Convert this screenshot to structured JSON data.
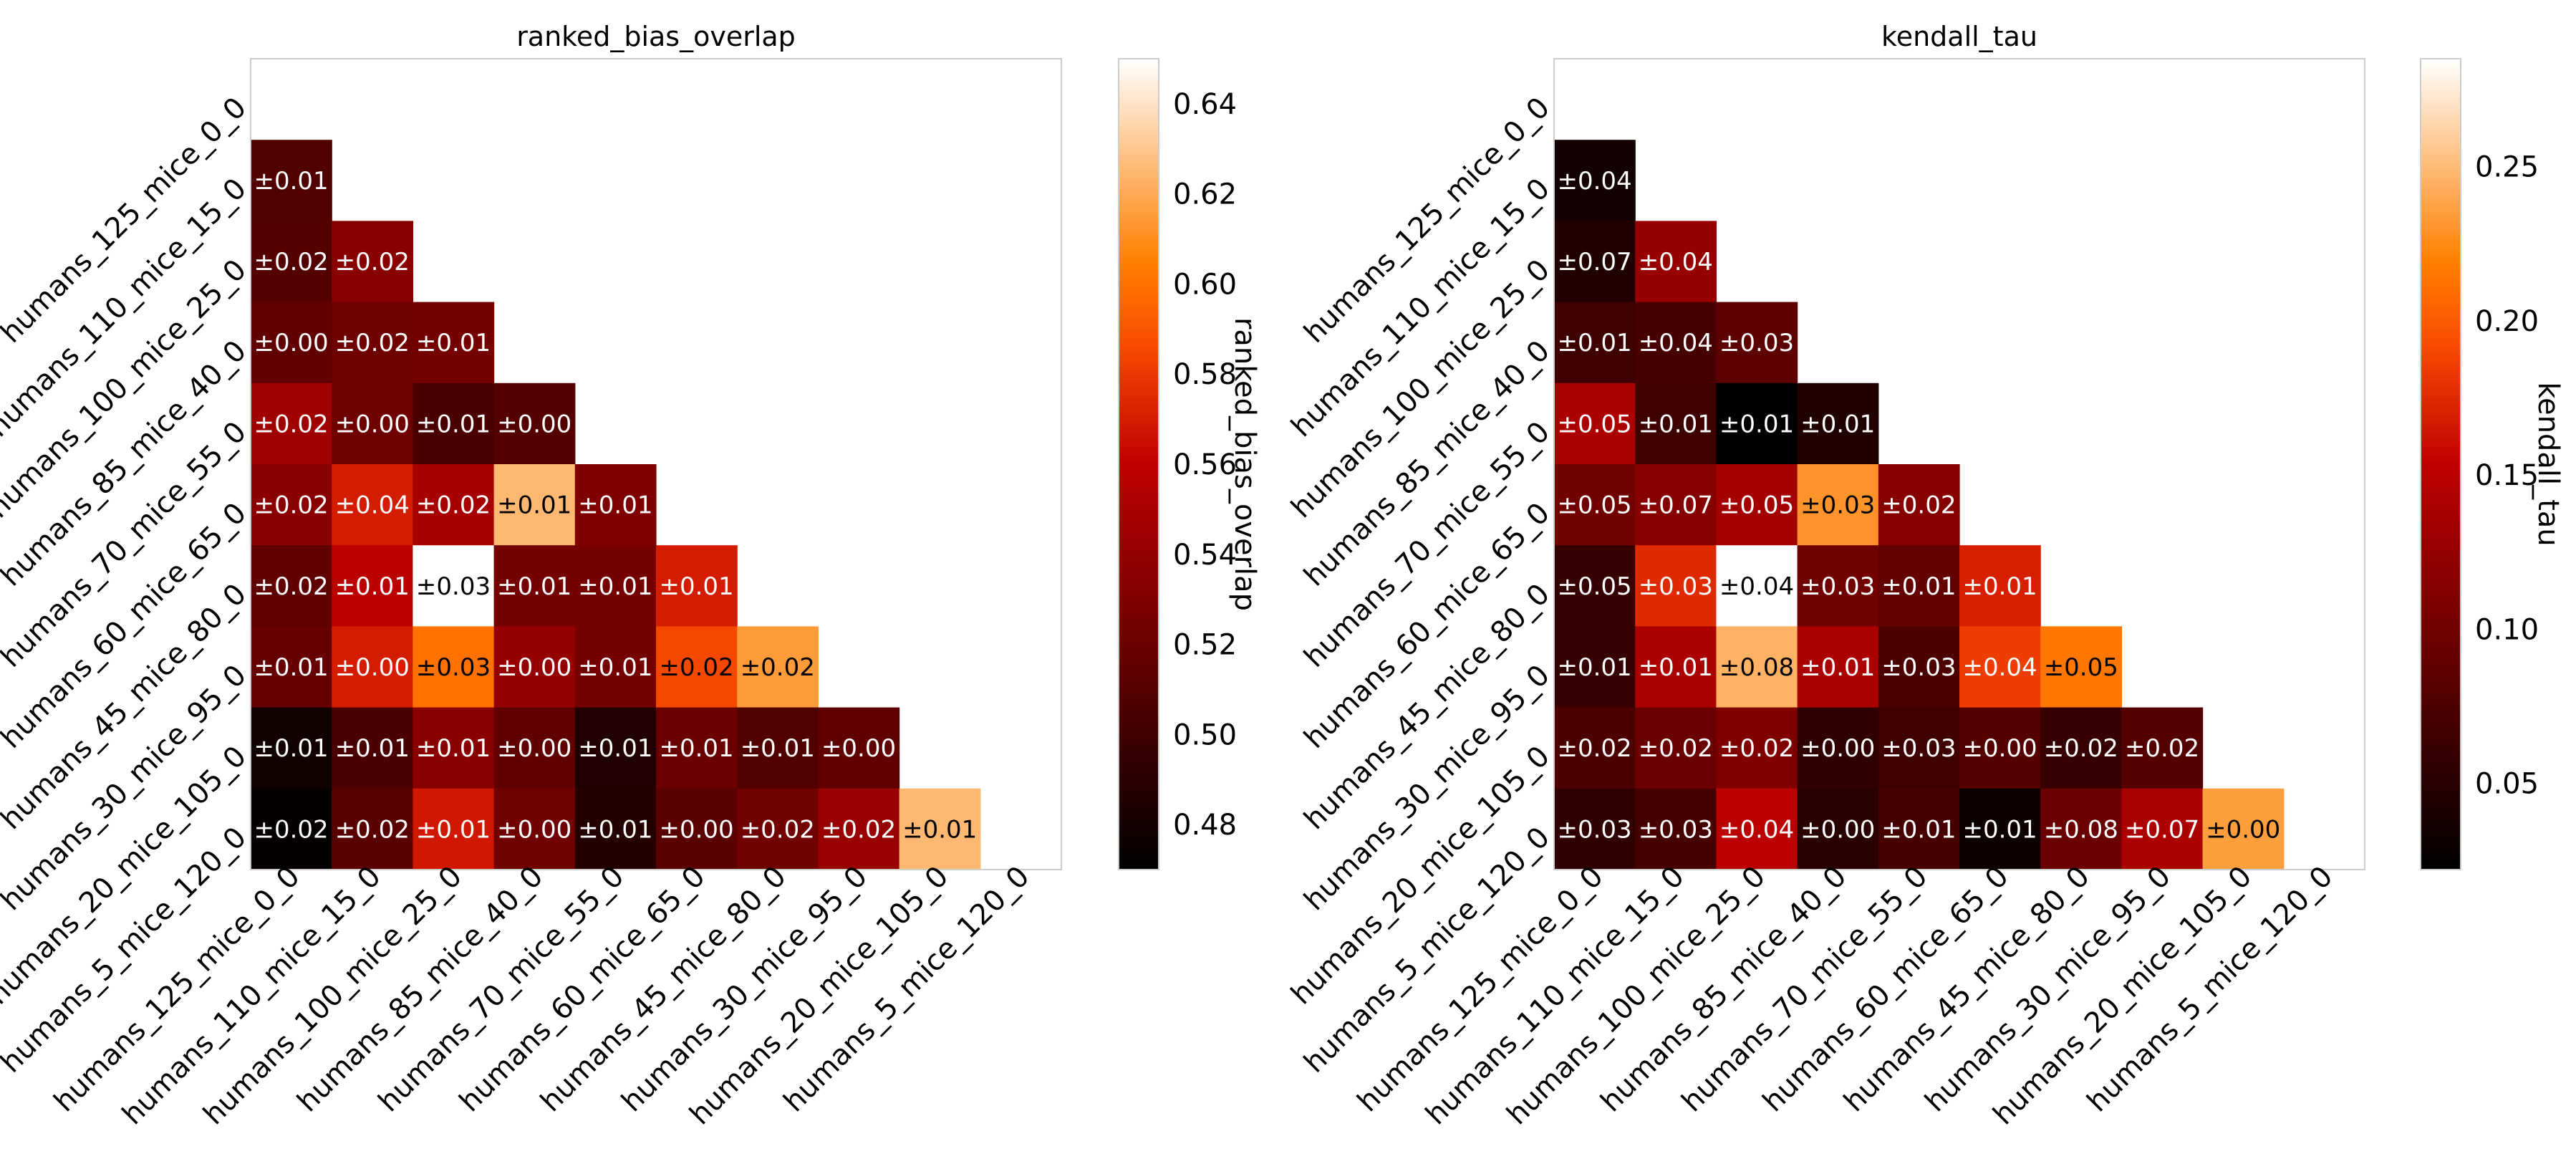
{
  "chart_data": [
    {
      "type": "heatmap",
      "title": "ranked_bias_overlap",
      "colorbar_label": "ranked_bias_overlap",
      "colormap": "gist_heat",
      "vmin": 0.47,
      "vmax": 0.65,
      "colorbar_ticks": [
        0.48,
        0.5,
        0.52,
        0.54,
        0.56,
        0.58,
        0.6,
        0.62,
        0.64
      ],
      "colorbar_tick_labels": [
        "0.48",
        "0.50",
        "0.52",
        "0.54",
        "0.56",
        "0.58",
        "0.60",
        "0.62",
        "0.64"
      ],
      "x_tick_labels": [
        "humans_125_mice_0_0",
        "humans_110_mice_15_0",
        "humans_100_mice_25_0",
        "humans_85_mice_40_0",
        "humans_70_mice_55_0",
        "humans_60_mice_65_0",
        "humans_45_mice_80_0",
        "humans_30_mice_95_0",
        "humans_20_mice_105_0",
        "humans_5_mice_120_0"
      ],
      "y_tick_labels": [
        "humans_125_mice_0_0",
        "humans_110_mice_15_0",
        "humans_100_mice_25_0",
        "humans_85_mice_40_0",
        "humans_70_mice_55_0",
        "humans_60_mice_65_0",
        "humans_45_mice_80_0",
        "humans_30_mice_95_0",
        "humans_20_mice_105_0",
        "humans_5_mice_120_0"
      ],
      "mask": "upper triangle including diagonal",
      "values": [
        [
          null,
          null,
          null,
          null,
          null,
          null,
          null,
          null,
          null,
          null
        ],
        [
          0.508,
          null,
          null,
          null,
          null,
          null,
          null,
          null,
          null,
          null
        ],
        [
          0.51,
          0.534,
          null,
          null,
          null,
          null,
          null,
          null,
          null,
          null
        ],
        [
          0.515,
          0.522,
          0.525,
          null,
          null,
          null,
          null,
          null,
          null,
          null
        ],
        [
          0.545,
          0.522,
          0.505,
          0.51,
          null,
          null,
          null,
          null,
          null,
          null
        ],
        [
          0.535,
          0.57,
          0.548,
          0.625,
          0.53,
          null,
          null,
          null,
          null,
          null
        ],
        [
          0.515,
          0.558,
          0.65,
          0.525,
          0.525,
          0.57,
          null,
          null,
          null,
          null
        ],
        [
          0.518,
          0.57,
          0.6,
          0.54,
          0.525,
          0.585,
          0.615,
          null,
          null,
          null
        ],
        [
          0.478,
          0.505,
          0.535,
          0.515,
          0.485,
          0.52,
          0.508,
          0.515,
          null,
          null
        ],
        [
          0.472,
          0.512,
          0.568,
          0.523,
          0.487,
          0.513,
          0.523,
          0.542,
          0.625,
          null
        ]
      ],
      "annotations": [
        [
          null,
          null,
          null,
          null,
          null,
          null,
          null,
          null,
          null,
          null
        ],
        [
          "±0.01",
          null,
          null,
          null,
          null,
          null,
          null,
          null,
          null,
          null
        ],
        [
          "±0.02",
          "±0.02",
          null,
          null,
          null,
          null,
          null,
          null,
          null,
          null
        ],
        [
          "±0.00",
          "±0.02",
          "±0.01",
          null,
          null,
          null,
          null,
          null,
          null,
          null
        ],
        [
          "±0.02",
          "±0.00",
          "±0.01",
          "±0.00",
          null,
          null,
          null,
          null,
          null,
          null
        ],
        [
          "±0.02",
          "±0.04",
          "±0.02",
          "±0.01",
          "±0.01",
          null,
          null,
          null,
          null,
          null
        ],
        [
          "±0.02",
          "±0.01",
          "±0.03",
          "±0.01",
          "±0.01",
          "±0.01",
          null,
          null,
          null,
          null
        ],
        [
          "±0.01",
          "±0.00",
          "±0.03",
          "±0.00",
          "±0.01",
          "±0.02",
          "±0.02",
          null,
          null,
          null
        ],
        [
          "±0.01",
          "±0.01",
          "±0.01",
          "±0.00",
          "±0.01",
          "±0.01",
          "±0.01",
          "±0.00",
          null,
          null
        ],
        [
          "±0.02",
          "±0.02",
          "±0.01",
          "±0.00",
          "±0.01",
          "±0.00",
          "±0.02",
          "±0.02",
          "±0.01",
          null
        ]
      ]
    },
    {
      "type": "heatmap",
      "title": "kendall_tau",
      "colorbar_label": "kendall_tau",
      "colormap": "gist_heat",
      "vmin": 0.022,
      "vmax": 0.285,
      "colorbar_ticks": [
        0.05,
        0.1,
        0.15,
        0.2,
        0.25
      ],
      "colorbar_tick_labels": [
        "0.05",
        "0.10",
        "0.15",
        "0.20",
        "0.25"
      ],
      "x_tick_labels": [
        "humans_125_mice_0_0",
        "humans_110_mice_15_0",
        "humans_100_mice_25_0",
        "humans_85_mice_40_0",
        "humans_70_mice_55_0",
        "humans_60_mice_65_0",
        "humans_45_mice_80_0",
        "humans_30_mice_95_0",
        "humans_20_mice_105_0",
        "humans_5_mice_120_0"
      ],
      "y_tick_labels": [
        "humans_125_mice_0_0",
        "humans_110_mice_15_0",
        "humans_100_mice_25_0",
        "humans_85_mice_40_0",
        "humans_70_mice_55_0",
        "humans_60_mice_65_0",
        "humans_45_mice_80_0",
        "humans_30_mice_95_0",
        "humans_20_mice_105_0",
        "humans_5_mice_120_0"
      ],
      "mask": "upper triangle including diagonal",
      "values": [
        [
          null,
          null,
          null,
          null,
          null,
          null,
          null,
          null,
          null,
          null
        ],
        [
          0.035,
          null,
          null,
          null,
          null,
          null,
          null,
          null,
          null,
          null
        ],
        [
          0.045,
          0.125,
          null,
          null,
          null,
          null,
          null,
          null,
          null,
          null
        ],
        [
          0.065,
          0.07,
          0.085,
          null,
          null,
          null,
          null,
          null,
          null,
          null
        ],
        [
          0.14,
          0.065,
          0.022,
          0.045,
          null,
          null,
          null,
          null,
          null,
          null
        ],
        [
          0.1,
          0.115,
          0.135,
          0.23,
          0.115,
          null,
          null,
          null,
          null,
          null
        ],
        [
          0.06,
          0.175,
          0.285,
          0.1,
          0.09,
          0.17,
          null,
          null,
          null,
          null
        ],
        [
          0.06,
          0.14,
          0.245,
          0.14,
          0.075,
          0.185,
          0.215,
          null,
          null,
          null
        ],
        [
          0.075,
          0.095,
          0.11,
          0.055,
          0.065,
          0.08,
          0.06,
          0.08,
          null,
          null
        ],
        [
          0.055,
          0.07,
          0.15,
          0.05,
          0.07,
          0.03,
          0.095,
          0.14,
          0.235,
          null
        ]
      ],
      "annotations": [
        [
          null,
          null,
          null,
          null,
          null,
          null,
          null,
          null,
          null,
          null
        ],
        [
          "±0.04",
          null,
          null,
          null,
          null,
          null,
          null,
          null,
          null,
          null
        ],
        [
          "±0.07",
          "±0.04",
          null,
          null,
          null,
          null,
          null,
          null,
          null,
          null
        ],
        [
          "±0.01",
          "±0.04",
          "±0.03",
          null,
          null,
          null,
          null,
          null,
          null,
          null
        ],
        [
          "±0.05",
          "±0.01",
          "±0.01",
          "±0.01",
          null,
          null,
          null,
          null,
          null,
          null
        ],
        [
          "±0.05",
          "±0.07",
          "±0.05",
          "±0.03",
          "±0.02",
          null,
          null,
          null,
          null,
          null
        ],
        [
          "±0.05",
          "±0.03",
          "±0.04",
          "±0.03",
          "±0.01",
          "±0.01",
          null,
          null,
          null,
          null
        ],
        [
          "±0.01",
          "±0.01",
          "±0.08",
          "±0.01",
          "±0.03",
          "±0.04",
          "±0.05",
          null,
          null,
          null
        ],
        [
          "±0.02",
          "±0.02",
          "±0.02",
          "±0.00",
          "±0.03",
          "±0.00",
          "±0.02",
          "±0.02",
          null,
          null
        ],
        [
          "±0.03",
          "±0.03",
          "±0.04",
          "±0.00",
          "±0.01",
          "±0.01",
          "±0.08",
          "±0.07",
          "±0.00",
          null
        ]
      ]
    }
  ]
}
